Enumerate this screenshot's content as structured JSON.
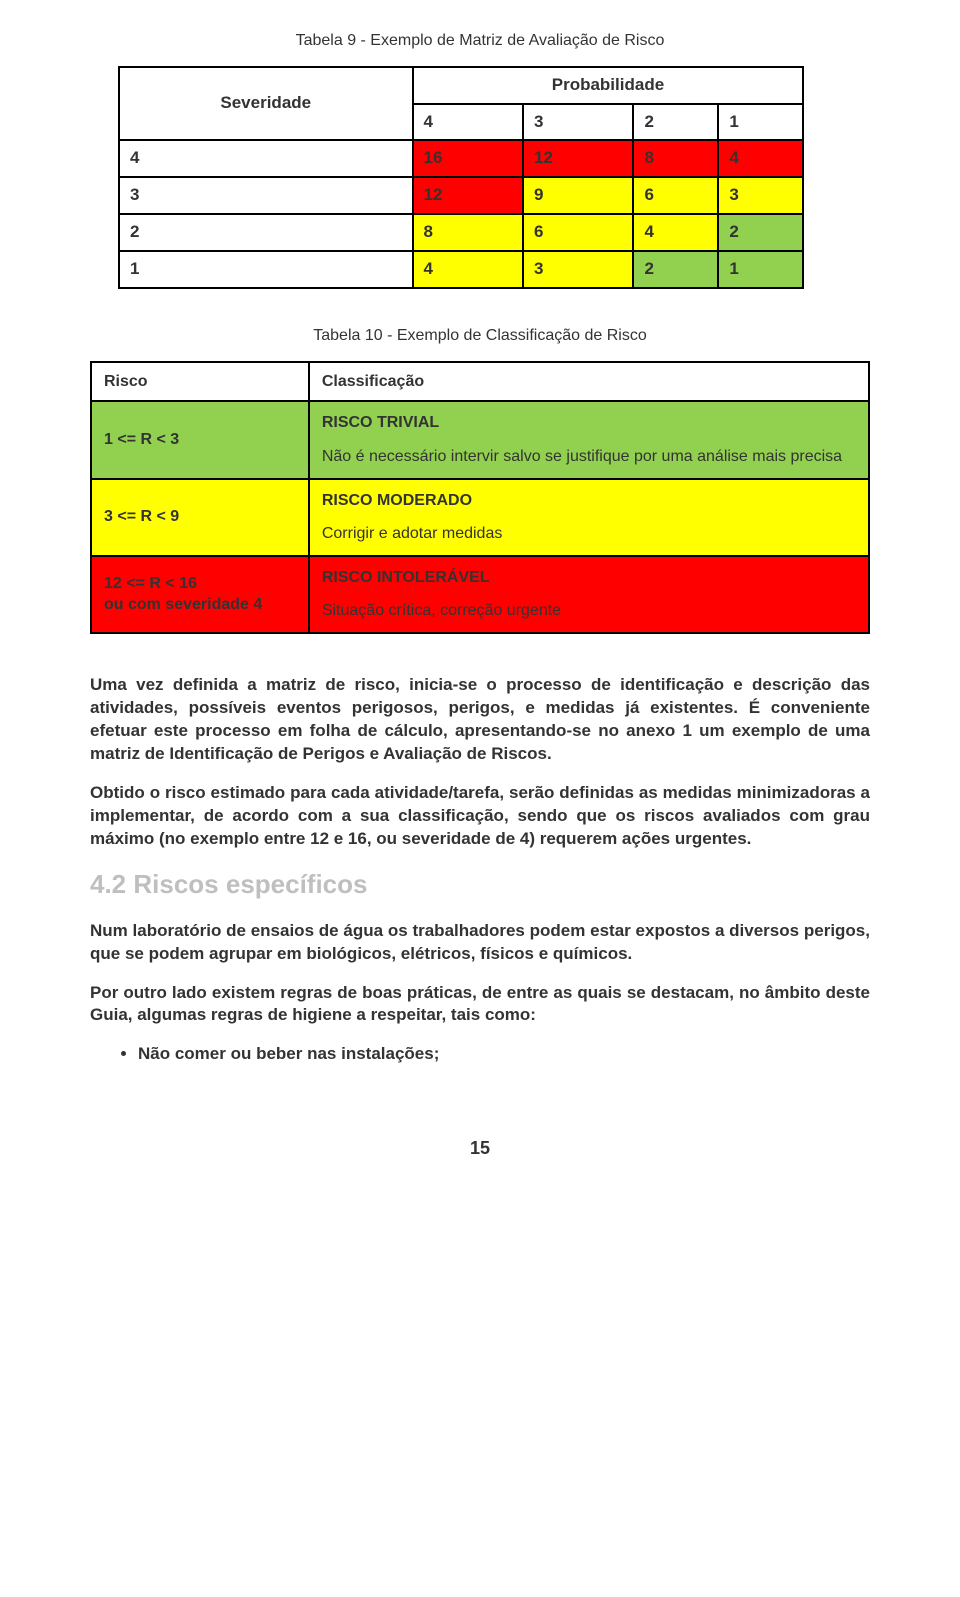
{
  "colors": {
    "green": "#92d050",
    "yellow": "#ffff00",
    "red": "#ff0000",
    "white": "#ffffff",
    "section_grey": "#bfbfbf",
    "text": "#333333",
    "border": "#000000"
  },
  "matrix": {
    "title": "Tabela 9 - Exemplo de Matriz de Avaliação de Risco",
    "corner_label": "Severidade",
    "prob_label": "Probabilidade",
    "prob_headers": [
      "4",
      "3",
      "2",
      "1"
    ],
    "rows": [
      {
        "sev": "4",
        "cells": [
          {
            "v": "16",
            "c": "red"
          },
          {
            "v": "12",
            "c": "red"
          },
          {
            "v": "8",
            "c": "red"
          },
          {
            "v": "4",
            "c": "red"
          }
        ]
      },
      {
        "sev": "3",
        "cells": [
          {
            "v": "12",
            "c": "red"
          },
          {
            "v": "9",
            "c": "yellow"
          },
          {
            "v": "6",
            "c": "yellow"
          },
          {
            "v": "3",
            "c": "yellow"
          }
        ]
      },
      {
        "sev": "2",
        "cells": [
          {
            "v": "8",
            "c": "yellow"
          },
          {
            "v": "6",
            "c": "yellow"
          },
          {
            "v": "4",
            "c": "yellow"
          },
          {
            "v": "2",
            "c": "green"
          }
        ]
      },
      {
        "sev": "1",
        "cells": [
          {
            "v": "4",
            "c": "yellow"
          },
          {
            "v": "3",
            "c": "yellow"
          },
          {
            "v": "2",
            "c": "green"
          },
          {
            "v": "1",
            "c": "green"
          }
        ]
      }
    ]
  },
  "classif": {
    "title": "Tabela 10 - Exemplo de Classificação de Risco",
    "head_risk": "Risco",
    "head_class": "Classificação",
    "rows": [
      {
        "range": "1 <= R < 3",
        "risk_bg": "green",
        "name": "RISCO TRIVIAL",
        "desc": "Não é necessário intervir salvo se justifique por uma análise mais precisa",
        "class_bg": "green"
      },
      {
        "range": "3 <= R < 9",
        "risk_bg": "yellow",
        "name": "RISCO MODERADO",
        "desc": "Corrigir e adotar medidas",
        "class_bg": "yellow"
      },
      {
        "range": "12 <= R < 16\nou com severidade 4",
        "risk_bg": "red",
        "name": "RISCO INTOLERÁVEL",
        "desc": " Situação crítica, correção urgente",
        "class_bg": "red"
      }
    ]
  },
  "paragraphs": {
    "p1": "Uma vez definida a matriz de risco, inicia-se o processo de identificação e descrição das atividades, possíveis eventos perigosos, perigos, e medidas já existentes. É conveniente efetuar este processo em folha de cálculo, apresentando-se no anexo 1 um exemplo de uma matriz de Identificação de Perigos e Avaliação de Riscos.",
    "p2": "Obtido o risco estimado para cada atividade/tarefa, serão definidas as medidas minimizadoras a implementar, de acordo com a sua classificação, sendo que os riscos avaliados com grau máximo (no exemplo entre 12 e 16, ou severidade de 4) requerem ações urgentes.",
    "section": "4.2 Riscos específicos",
    "p3": "Num laboratório de ensaios de água os trabalhadores podem estar expostos a diversos perigos, que se podem agrupar em biológicos, elétricos, físicos e químicos.",
    "p4": "Por outro lado existem regras de boas práticas, de entre as quais se destacam, no âmbito deste Guia, algumas regras de higiene a respeitar, tais como:",
    "bullet1": "Não comer ou beber nas instalações;"
  },
  "page_number": "15"
}
